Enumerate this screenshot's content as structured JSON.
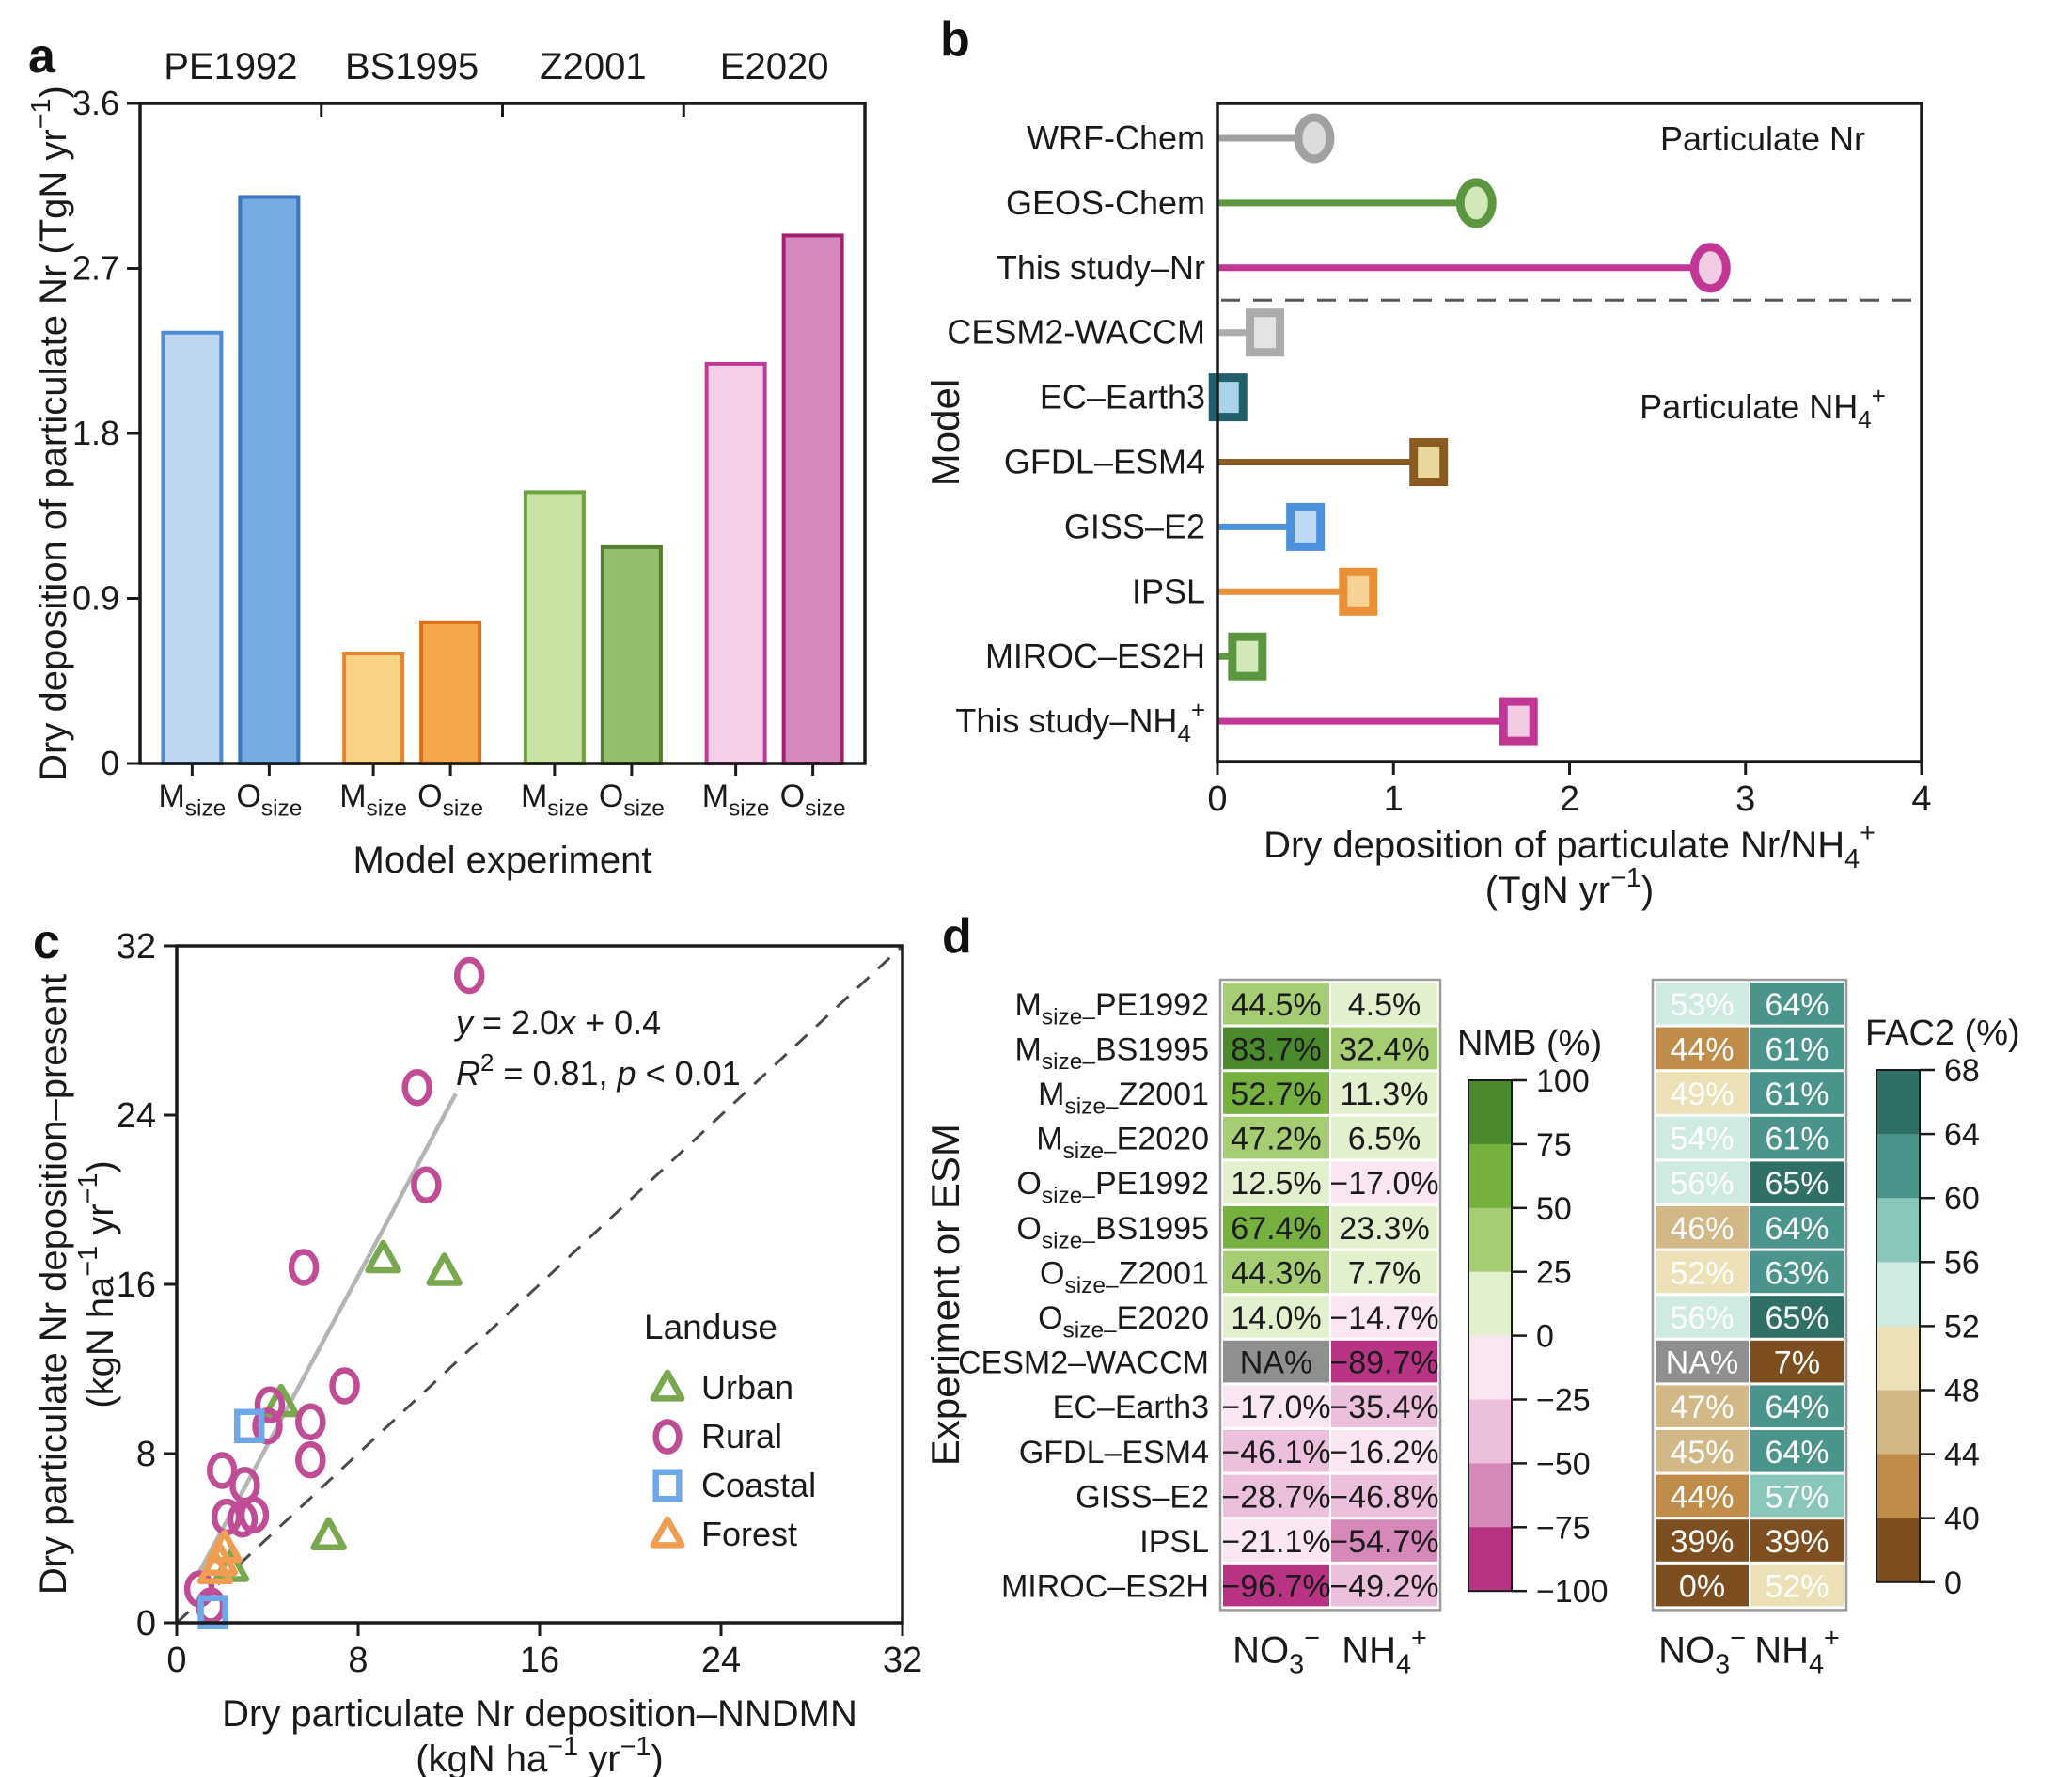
{
  "figure": {
    "background": "#ffffff",
    "text_color": "#1a1a1a"
  },
  "panels": {
    "a": {
      "letter": "a"
    },
    "b": {
      "letter": "b"
    },
    "c": {
      "letter": "c"
    },
    "d": {
      "letter": "d"
    }
  },
  "chart_data": [
    {
      "id": "a",
      "type": "bar",
      "xlabel": "Model experiment",
      "ylabel_segments": [
        [
          "t",
          "Dry deposition of particulate Nr (TgN yr"
        ],
        [
          "sup",
          "−1"
        ],
        [
          "t",
          ")"
        ]
      ],
      "ylim": [
        0,
        3.6
      ],
      "yticks": [
        {
          "v": 0,
          "label": "0"
        },
        {
          "v": 0.9,
          "label": "0.9"
        },
        {
          "v": 1.8,
          "label": "1.8"
        },
        {
          "v": 2.7,
          "label": "2.7"
        },
        {
          "v": 3.6,
          "label": "3.6"
        }
      ],
      "bar_tick_segments": [
        [
          [
            "t",
            "M"
          ],
          [
            "sub",
            "size"
          ]
        ],
        [
          [
            "t",
            "O"
          ],
          [
            "sub",
            "size"
          ]
        ]
      ],
      "groups": [
        {
          "name": "PE1992",
          "m_value": 2.35,
          "o_value": 3.09,
          "m_fill": "#bcd6f2",
          "m_stroke": "#4d8bd3",
          "o_fill": "#76aae2",
          "o_stroke": "#3a74bd"
        },
        {
          "name": "BS1995",
          "m_value": 0.6,
          "o_value": 0.77,
          "m_fill": "#f8d285",
          "m_stroke": "#e8832f",
          "o_fill": "#f5a84b",
          "o_stroke": "#dd6f1c"
        },
        {
          "name": "Z2001",
          "m_value": 1.48,
          "o_value": 1.18,
          "m_fill": "#c9e3a4",
          "m_stroke": "#6fa33f",
          "o_fill": "#94be6a",
          "o_stroke": "#527f2f"
        },
        {
          "name": "E2020",
          "m_value": 2.18,
          "o_value": 2.88,
          "m_fill": "#f3d0e7",
          "m_stroke": "#c2399a",
          "o_fill": "#d687bb",
          "o_stroke": "#a2206e"
        }
      ]
    },
    {
      "id": "b",
      "type": "lollipop",
      "ylabel": "Model",
      "xlabel_line1_segments": [
        [
          "t",
          "Dry deposition of particulate Nr/NH"
        ],
        [
          "sub",
          "4"
        ],
        [
          "sup",
          "+"
        ]
      ],
      "xlabel_line2_segments": [
        [
          "t",
          "(TgN yr"
        ],
        [
          "sup",
          "−1"
        ],
        [
          "t",
          ")"
        ]
      ],
      "xlim": [
        0,
        4
      ],
      "xticks": [
        0,
        1,
        2,
        3,
        4
      ],
      "section_labels": {
        "top": [
          [
            "t",
            "Particulate Nr"
          ]
        ],
        "bottom": [
          [
            "t",
            "Particulate NH"
          ],
          [
            "sub",
            "4"
          ],
          [
            "sup",
            "+"
          ]
        ]
      },
      "divider_after": 3,
      "rows": [
        {
          "label_segments": [
            [
              "t",
              "WRF-Chem"
            ]
          ],
          "value": 0.55,
          "marker": "circle",
          "stroke": "#a0a0a0",
          "fill": "#dcdcdc"
        },
        {
          "label_segments": [
            [
              "t",
              "GEOS-Chem"
            ]
          ],
          "value": 1.47,
          "marker": "circle",
          "stroke": "#5d9641",
          "fill": "#d3e8b8"
        },
        {
          "label_segments": [
            [
              "t",
              "This study–Nr"
            ]
          ],
          "value": 2.8,
          "marker": "circle",
          "stroke": "#c23795",
          "fill": "#f2cbe4"
        },
        {
          "label_segments": [
            [
              "t",
              "CESM2-WACCM"
            ]
          ],
          "value": 0.27,
          "marker": "square",
          "stroke": "#ababab",
          "fill": "#e3e3e3"
        },
        {
          "label_segments": [
            [
              "t",
              "EC–Earth3"
            ]
          ],
          "value": 0.06,
          "marker": "square",
          "stroke": "#21606b",
          "fill": "#a9d3e8"
        },
        {
          "label_segments": [
            [
              "t",
              "GFDL–ESM4"
            ]
          ],
          "value": 1.2,
          "marker": "square",
          "stroke": "#8a5a1e",
          "fill": "#e8d89c"
        },
        {
          "label_segments": [
            [
              "t",
              "GISS–E2"
            ]
          ],
          "value": 0.5,
          "marker": "square",
          "stroke": "#4d90dd",
          "fill": "#bcd9f4"
        },
        {
          "label_segments": [
            [
              "t",
              "IPSL"
            ]
          ],
          "value": 0.8,
          "marker": "square",
          "stroke": "#e88f38",
          "fill": "#f8d294"
        },
        {
          "label_segments": [
            [
              "t",
              "MIROC–ES2H"
            ]
          ],
          "value": 0.17,
          "marker": "square",
          "stroke": "#5d9641",
          "fill": "#d3e8b8"
        },
        {
          "label_segments": [
            [
              "t",
              "This study–NH"
            ],
            [
              "sub",
              "4"
            ],
            [
              "sup",
              "+"
            ]
          ],
          "value": 1.71,
          "marker": "square",
          "stroke": "#c23795",
          "fill": "#f2cbe4"
        }
      ]
    },
    {
      "id": "c",
      "type": "scatter",
      "xlabel_line1": "Dry particulate Nr deposition–NNDMN",
      "ylabel_line1": "Dry particulate Nr deposition–present",
      "unit_segments": [
        [
          "t",
          "(kgN ha"
        ],
        [
          "sup",
          "−1"
        ],
        [
          "t",
          " yr"
        ],
        [
          "sup",
          "−1"
        ],
        [
          "t",
          ")"
        ]
      ],
      "xlim": [
        0,
        32
      ],
      "ylim": [
        0,
        32
      ],
      "ticks": [
        0,
        8,
        16,
        24,
        32
      ],
      "annotation_line1_segments": [
        [
          "i",
          "y"
        ],
        [
          "t",
          " = 2.0"
        ],
        [
          "i",
          "x"
        ],
        [
          "t",
          " + 0.4"
        ]
      ],
      "annotation_line2_segments": [
        [
          "i",
          "R"
        ],
        [
          "sup",
          "2"
        ],
        [
          "t",
          " = 0.81, "
        ],
        [
          "i",
          "p"
        ],
        [
          "t",
          " < 0.01"
        ]
      ],
      "fit_line": {
        "slope": 2.0,
        "intercept": 0.4,
        "x_start": 1.0,
        "x_end": 12.3,
        "color": "#b5b5b5"
      },
      "identity_line": {
        "from": [
          0,
          0
        ],
        "to": [
          32,
          32
        ],
        "color": "#4a4a4a"
      },
      "legend_title": "Landuse",
      "series": [
        {
          "name": "Urban",
          "marker": "triangle",
          "color": "#7aa84e",
          "points": [
            [
              9.1,
              17.2
            ],
            [
              11.8,
              16.6
            ],
            [
              4.6,
              10.4
            ],
            [
              6.7,
              4.1
            ],
            [
              2.4,
              2.6
            ]
          ]
        },
        {
          "name": "Rural",
          "marker": "circle",
          "color": "#c04c96",
          "points": [
            [
              12.9,
              30.6
            ],
            [
              10.6,
              25.3
            ],
            [
              11.0,
              20.7
            ],
            [
              5.6,
              16.8
            ],
            [
              7.4,
              11.2
            ],
            [
              4.1,
              10.3
            ],
            [
              4.0,
              9.3
            ],
            [
              5.9,
              9.5
            ],
            [
              5.9,
              7.7
            ],
            [
              2.0,
              7.2
            ],
            [
              3.0,
              6.5
            ],
            [
              2.2,
              5.0
            ],
            [
              2.9,
              4.9
            ],
            [
              3.4,
              5.1
            ],
            [
              1.0,
              1.6
            ],
            [
              1.5,
              0.8
            ]
          ]
        },
        {
          "name": "Coastal",
          "marker": "square",
          "color": "#6fa8e8",
          "points": [
            [
              3.2,
              9.3
            ],
            [
              1.6,
              0.5
            ]
          ]
        },
        {
          "name": "Forest",
          "marker": "triangle",
          "color": "#f09d52",
          "points": [
            [
              2.1,
              3.5
            ],
            [
              1.9,
              2.9
            ],
            [
              1.7,
              2.5
            ]
          ]
        }
      ]
    },
    {
      "id": "d",
      "type": "heatmap",
      "ylabel": "Experiment or ESM",
      "col_header_segments": [
        [
          [
            "t",
            "NO"
          ],
          [
            "sub",
            "3"
          ],
          [
            "sup",
            "−"
          ]
        ],
        [
          [
            "t",
            "NH"
          ],
          [
            "sub",
            "4"
          ],
          [
            "sup",
            "+"
          ]
        ]
      ],
      "na_color": "#8f8f8f",
      "rows": [
        {
          "label_segments": [
            [
              "t",
              "M"
            ],
            [
              "sub",
              "size–"
            ],
            [
              "t",
              "PE1992"
            ]
          ],
          "nmb": [
            44.5,
            4.5
          ],
          "fac2": [
            53,
            64
          ]
        },
        {
          "label_segments": [
            [
              "t",
              "M"
            ],
            [
              "sub",
              "size–"
            ],
            [
              "t",
              "BS1995"
            ]
          ],
          "nmb": [
            83.7,
            32.4
          ],
          "fac2": [
            44,
            61
          ]
        },
        {
          "label_segments": [
            [
              "t",
              "M"
            ],
            [
              "sub",
              "size–"
            ],
            [
              "t",
              "Z2001"
            ]
          ],
          "nmb": [
            52.7,
            11.3
          ],
          "fac2": [
            49,
            61
          ]
        },
        {
          "label_segments": [
            [
              "t",
              "M"
            ],
            [
              "sub",
              "size–"
            ],
            [
              "t",
              "E2020"
            ]
          ],
          "nmb": [
            47.2,
            6.5
          ],
          "fac2": [
            54,
            61
          ]
        },
        {
          "label_segments": [
            [
              "t",
              "O"
            ],
            [
              "sub",
              "size–"
            ],
            [
              "t",
              "PE1992"
            ]
          ],
          "nmb": [
            12.5,
            -17.0
          ],
          "fac2": [
            56,
            65
          ]
        },
        {
          "label_segments": [
            [
              "t",
              "O"
            ],
            [
              "sub",
              "size–"
            ],
            [
              "t",
              "BS1995"
            ]
          ],
          "nmb": [
            67.4,
            23.3
          ],
          "fac2": [
            46,
            64
          ]
        },
        {
          "label_segments": [
            [
              "t",
              "O"
            ],
            [
              "sub",
              "size–"
            ],
            [
              "t",
              "Z2001"
            ]
          ],
          "nmb": [
            44.3,
            7.7
          ],
          "fac2": [
            52,
            63
          ]
        },
        {
          "label_segments": [
            [
              "t",
              "O"
            ],
            [
              "sub",
              "size–"
            ],
            [
              "t",
              "E2020"
            ]
          ],
          "nmb": [
            14.0,
            -14.7
          ],
          "fac2": [
            56,
            65
          ]
        },
        {
          "label_segments": [
            [
              "t",
              "CESM2–WACCM"
            ]
          ],
          "nmb": [
            null,
            -89.7
          ],
          "fac2": [
            null,
            7
          ]
        },
        {
          "label_segments": [
            [
              "t",
              "EC–Earth3"
            ]
          ],
          "nmb": [
            -17.0,
            -35.4
          ],
          "fac2": [
            47,
            64
          ]
        },
        {
          "label_segments": [
            [
              "t",
              "GFDL–ESM4"
            ]
          ],
          "nmb": [
            -46.1,
            -16.2
          ],
          "fac2": [
            45,
            64
          ]
        },
        {
          "label_segments": [
            [
              "t",
              "GISS–E2"
            ]
          ],
          "nmb": [
            -28.7,
            -46.8
          ],
          "fac2": [
            44,
            57
          ]
        },
        {
          "label_segments": [
            [
              "t",
              "IPSL"
            ]
          ],
          "nmb": [
            -21.1,
            -54.7
          ],
          "fac2": [
            39,
            39
          ]
        },
        {
          "label_segments": [
            [
              "t",
              "MIROC–ES2H"
            ]
          ],
          "nmb": [
            -96.7,
            -49.2
          ],
          "fac2": [
            0,
            52
          ]
        }
      ],
      "nmb_colorbar": {
        "title": "NMB (%)",
        "ticks": [
          100,
          75,
          50,
          25,
          0,
          -25,
          -50,
          -75,
          -100
        ],
        "colors_top_to_bottom": [
          "#4a8a2c",
          "#76b13f",
          "#a6cd72",
          "#e3f0ce",
          "#f9e6f2",
          "#ecc0dd",
          "#d688b8",
          "#b93385"
        ]
      },
      "fac2_colorbar": {
        "title": "FAC2 (%)",
        "ticks": [
          68,
          64,
          60,
          56,
          52,
          48,
          44,
          40,
          0
        ],
        "colors_top_to_bottom": [
          "#2f6f66",
          "#4b948b",
          "#8ac7bb",
          "#cfe9e3",
          "#ece0b6",
          "#d3b887",
          "#c08c4a",
          "#7d4e20"
        ]
      }
    }
  ]
}
